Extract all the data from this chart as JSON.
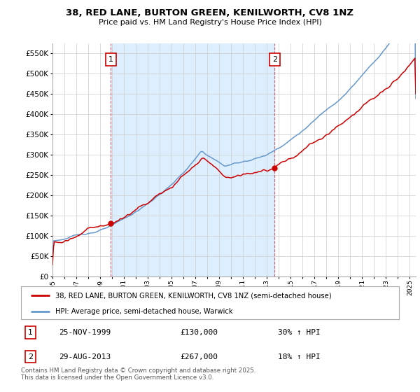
{
  "title": "38, RED LANE, BURTON GREEN, KENILWORTH, CV8 1NZ",
  "subtitle": "Price paid vs. HM Land Registry's House Price Index (HPI)",
  "legend_line1": "38, RED LANE, BURTON GREEN, KENILWORTH, CV8 1NZ (semi-detached house)",
  "legend_line2": "HPI: Average price, semi-detached house, Warwick",
  "annotation1_date": "25-NOV-1999",
  "annotation1_price": "£130,000",
  "annotation1_hpi": "30% ↑ HPI",
  "annotation2_date": "29-AUG-2013",
  "annotation2_price": "£267,000",
  "annotation2_hpi": "18% ↑ HPI",
  "footer": "Contains HM Land Registry data © Crown copyright and database right 2025.\nThis data is licensed under the Open Government Licence v3.0.",
  "red_color": "#cc0000",
  "blue_color": "#6699cc",
  "shade_color": "#ddeeff",
  "ylim": [
    0,
    575000
  ],
  "yticks": [
    0,
    50000,
    100000,
    150000,
    200000,
    250000,
    300000,
    350000,
    400000,
    450000,
    500000,
    550000
  ],
  "xlim_start": 1995.0,
  "xlim_end": 2025.5,
  "sale1_x": 1999.9,
  "sale1_y": 130000,
  "sale2_x": 2013.65,
  "sale2_y": 267000
}
